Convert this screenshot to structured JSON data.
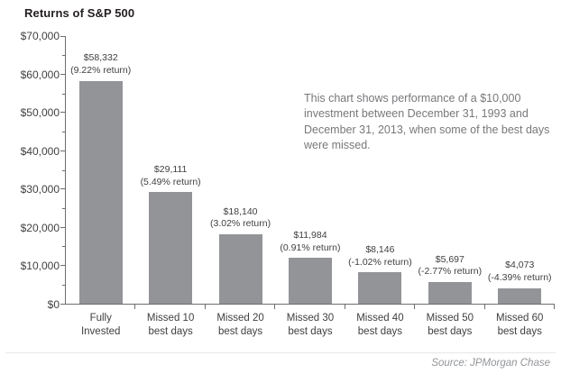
{
  "colors": {
    "bar": "#929497",
    "axis": "#6d6e71",
    "title_text": "#231f20",
    "label_text": "#414042",
    "annotation_text": "#77787b",
    "source_text": "#939598",
    "separator": "#e6e7e8",
    "background": "#ffffff"
  },
  "chart_data": {
    "type": "bar",
    "title": "Returns of S&P 500",
    "note": "This chart shows performance of a $10,000 investment between December 31, 1993 and December 31, 2013, when some of the best days were missed.",
    "source": "Source: JPMorgan Chase",
    "ylim": [
      0,
      70000
    ],
    "grid": false,
    "legend": false,
    "y_tick_labels": [
      "$70,000",
      "$60,000",
      "$50,000",
      "$40,000",
      "$30,000",
      "$20,000",
      "$10,000",
      "$0"
    ],
    "bars": [
      {
        "category": [
          "Fully",
          "Invested"
        ],
        "value": 58332,
        "value_label": "$58,332",
        "return_label": "(9.22% return)"
      },
      {
        "category": [
          "Missed 10",
          "best days"
        ],
        "value": 29111,
        "value_label": "$29,111",
        "return_label": "(5.49% return)"
      },
      {
        "category": [
          "Missed 20",
          "best days"
        ],
        "value": 18140,
        "value_label": "$18,140",
        "return_label": "(3.02% return)"
      },
      {
        "category": [
          "Missed 30",
          "best days"
        ],
        "value": 11984,
        "value_label": "$11,984",
        "return_label": "(0.91% return)"
      },
      {
        "category": [
          "Missed 40",
          "best days"
        ],
        "value": 8146,
        "value_label": "$8,146",
        "return_label": "(-1.02% return)"
      },
      {
        "category": [
          "Missed 50",
          "best days"
        ],
        "value": 5697,
        "value_label": "$5,697",
        "return_label": "(-2.77% return)"
      },
      {
        "category": [
          "Missed 60",
          "best days"
        ],
        "value": 4073,
        "value_label": "$4,073",
        "return_label": "(-4.39% return)"
      }
    ]
  }
}
